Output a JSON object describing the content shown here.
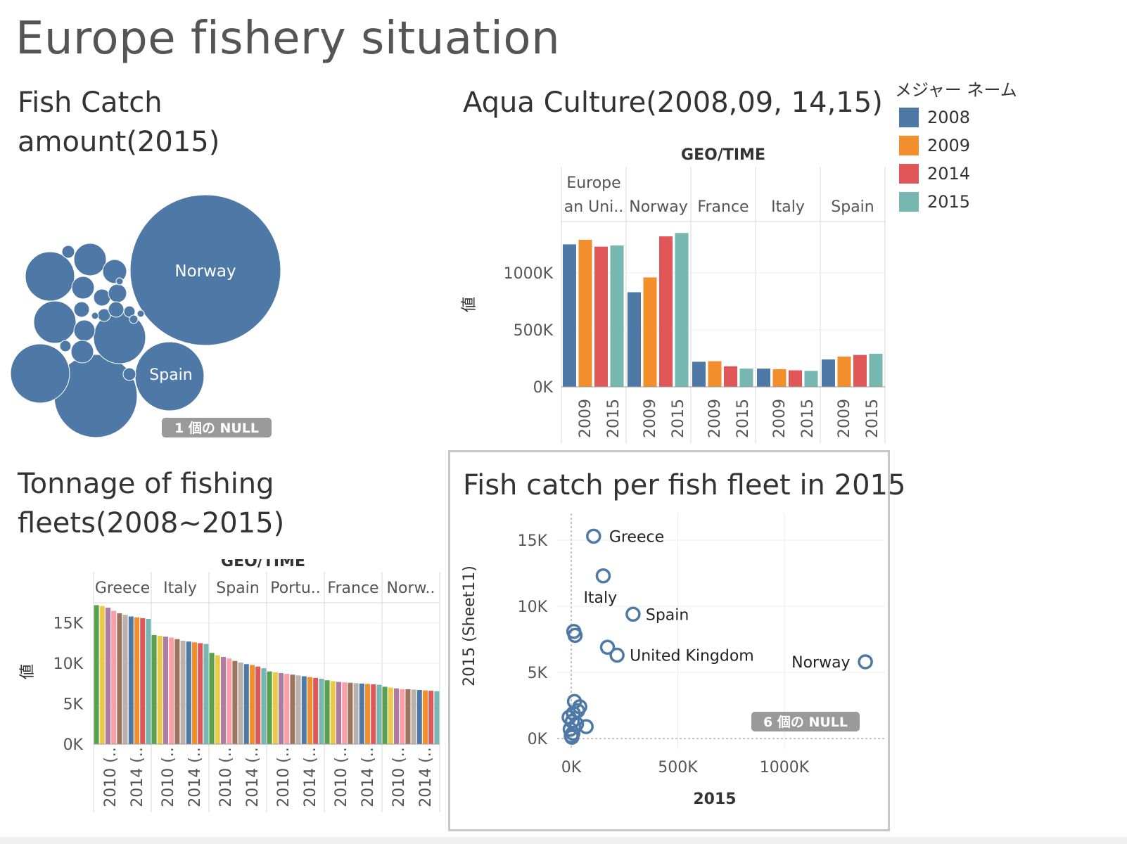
{
  "dashboard_title": "Europe fishery situation",
  "colors": {
    "blue": "#4e79a7",
    "orange": "#f28e2b",
    "red": "#e15759",
    "teal": "#76b7b2",
    "green": "#59a14f",
    "yellow": "#edc948",
    "purple": "#b07aa1",
    "pink": "#ff9da7",
    "brown": "#9c755f",
    "gray": "#bab0ac"
  },
  "legend": {
    "title": "メジャー ネーム",
    "items": [
      {
        "label": "2008",
        "color": "#4e79a7"
      },
      {
        "label": "2009",
        "color": "#f28e2b"
      },
      {
        "label": "2014",
        "color": "#e15759"
      },
      {
        "label": "2015",
        "color": "#76b7b2"
      }
    ]
  },
  "chart_data": [
    {
      "type": "bubble",
      "title": "Fish Catch\namount(2015)",
      "labels": [
        "Norway",
        "Spain"
      ],
      "null_badge": "1 個の NULL"
    },
    {
      "type": "bar",
      "title": "Aqua Culture(2008,09, 14,15)",
      "column_header": "GEO/TIME",
      "groups": [
        "Europe\nan Uni..",
        "Norway",
        "France",
        "Italy",
        "Spain"
      ],
      "bar_labels": [
        "2008",
        "2009",
        "2014",
        "2015"
      ],
      "x_tick_labels": [
        "2009",
        "2015"
      ],
      "series": [
        {
          "name": "2008",
          "values": [
            1250000,
            830000,
            220000,
            160000,
            240000
          ]
        },
        {
          "name": "2009",
          "values": [
            1290000,
            960000,
            225000,
            155000,
            265000
          ]
        },
        {
          "name": "2014",
          "values": [
            1230000,
            1320000,
            180000,
            145000,
            280000
          ]
        },
        {
          "name": "2015",
          "values": [
            1240000,
            1350000,
            160000,
            140000,
            290000
          ]
        }
      ],
      "ylabel": "値",
      "yticks": [
        "0K",
        "500K",
        "1000K"
      ],
      "ylim": [
        0,
        1450000
      ]
    },
    {
      "type": "bar",
      "title": "Tonnage of fishing\nfleets(2008~2015)",
      "column_header": "GEO/TIME",
      "groups": [
        "Greece",
        "Italy",
        "Spain",
        "Portu..",
        "France",
        "Norw.."
      ],
      "x_tick_labels": [
        "2010 (..",
        "2014 (.."
      ],
      "ylabel": "値",
      "yticks": [
        "0K",
        "5K",
        "10K",
        "15K"
      ],
      "ylim": [
        0,
        17500
      ],
      "bars_per_group": 10,
      "values": [
        [
          17200,
          17100,
          16900,
          16500,
          16200,
          16000,
          15800,
          15700,
          15600,
          15500
        ],
        [
          13500,
          13400,
          13300,
          13200,
          13000,
          12800,
          12700,
          12600,
          12500,
          12400
        ],
        [
          11300,
          11000,
          10800,
          10600,
          10300,
          10100,
          9900,
          9800,
          9600,
          9400
        ],
        [
          9000,
          8900,
          8800,
          8700,
          8600,
          8500,
          8400,
          8300,
          8200,
          8100
        ],
        [
          7900,
          7800,
          7700,
          7650,
          7600,
          7550,
          7500,
          7450,
          7400,
          7350
        ],
        [
          7100,
          7000,
          6900,
          6800,
          6800,
          6750,
          6700,
          6650,
          6600,
          6550
        ]
      ]
    },
    {
      "type": "scatter",
      "title": "Fish catch per fish fleet in 2015",
      "xlabel": "2015",
      "ylabel": "2015 (Sheet11)",
      "xticks": [
        "0K",
        "500K",
        "1000K"
      ],
      "yticks": [
        "0K",
        "5K",
        "10K",
        "15K"
      ],
      "xlim": [
        0,
        1500000
      ],
      "ylim": [
        0,
        16000
      ],
      "null_badge": "6 個の NULL",
      "points": [
        {
          "x": 105000,
          "y": 15300,
          "label": "Greece"
        },
        {
          "x": 150000,
          "y": 12300,
          "label": "Italy"
        },
        {
          "x": 290000,
          "y": 9400,
          "label": "Spain"
        },
        {
          "x": 215000,
          "y": 6300,
          "label": "United Kingdom"
        },
        {
          "x": 1380000,
          "y": 5800,
          "label": "Norway"
        },
        {
          "x": 12000,
          "y": 8100,
          "label": ""
        },
        {
          "x": 18000,
          "y": 7800,
          "label": ""
        },
        {
          "x": 170000,
          "y": 6900,
          "label": ""
        },
        {
          "x": 15000,
          "y": 2800,
          "label": ""
        },
        {
          "x": 40000,
          "y": 2400,
          "label": ""
        },
        {
          "x": 30000,
          "y": 2100,
          "label": ""
        },
        {
          "x": 10000,
          "y": 1900,
          "label": ""
        },
        {
          "x": -10000,
          "y": 1600,
          "label": ""
        },
        {
          "x": 5000,
          "y": 1300,
          "label": ""
        },
        {
          "x": 25000,
          "y": 1100,
          "label": ""
        },
        {
          "x": 70000,
          "y": 900,
          "label": ""
        },
        {
          "x": -5000,
          "y": 700,
          "label": ""
        },
        {
          "x": 8000,
          "y": 400,
          "label": ""
        },
        {
          "x": 0,
          "y": 200,
          "label": ""
        },
        {
          "x": 3000,
          "y": 100,
          "label": ""
        }
      ]
    }
  ]
}
